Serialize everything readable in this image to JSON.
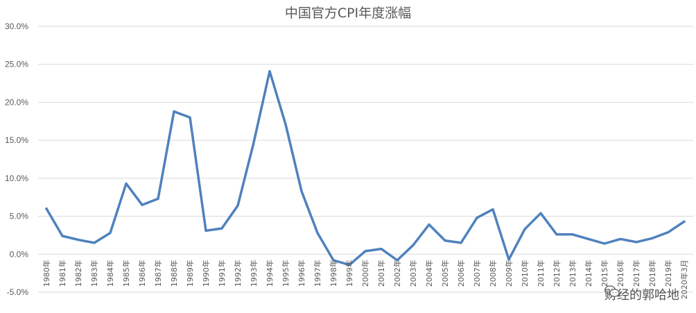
{
  "chart_data": {
    "type": "line",
    "title": "中国官方CPI年度涨幅",
    "xlabel": "",
    "ylabel": "",
    "ylim": [
      -5,
      30
    ],
    "y_ticks": [
      -5,
      0,
      5,
      10,
      15,
      20,
      25,
      30
    ],
    "y_tick_labels": [
      "-5.0%",
      "0.0%",
      "5.0%",
      "10.0%",
      "15.0%",
      "20.0%",
      "25.0%",
      "30.0%"
    ],
    "grid": true,
    "legend": "none",
    "line_color": "#4f81bd",
    "categories": [
      "1980年",
      "1981年",
      "1982年",
      "1983年",
      "1984年",
      "1985年",
      "1986年",
      "1987年",
      "1988年",
      "1989年",
      "1990年",
      "1991年",
      "1992年",
      "1993年",
      "1994年",
      "1995年",
      "1996年",
      "1997年",
      "1998年",
      "1999年",
      "2000年",
      "2001年",
      "2002年",
      "2003年",
      "2004年",
      "2005年",
      "2006年",
      "2007年",
      "2008年",
      "2009年",
      "2010年",
      "2011年",
      "2012年",
      "2013年",
      "2014年",
      "2015年",
      "2016年",
      "2017年",
      "2018年",
      "2019年",
      "2020年3月"
    ],
    "series": [
      {
        "values": [
          6.0,
          2.4,
          1.9,
          1.5,
          2.8,
          9.3,
          6.5,
          7.3,
          18.8,
          18.0,
          3.1,
          3.4,
          6.4,
          14.7,
          24.1,
          17.1,
          8.3,
          2.8,
          -0.8,
          -1.4,
          0.4,
          0.7,
          -0.8,
          1.2,
          3.9,
          1.8,
          1.5,
          4.8,
          5.9,
          -0.7,
          3.3,
          5.4,
          2.6,
          2.6,
          2.0,
          1.4,
          2.0,
          1.6,
          2.1,
          2.9,
          4.3
        ]
      }
    ]
  },
  "watermark": {
    "icon": "wechat-icon",
    "text": "财经的郭哈地"
  }
}
